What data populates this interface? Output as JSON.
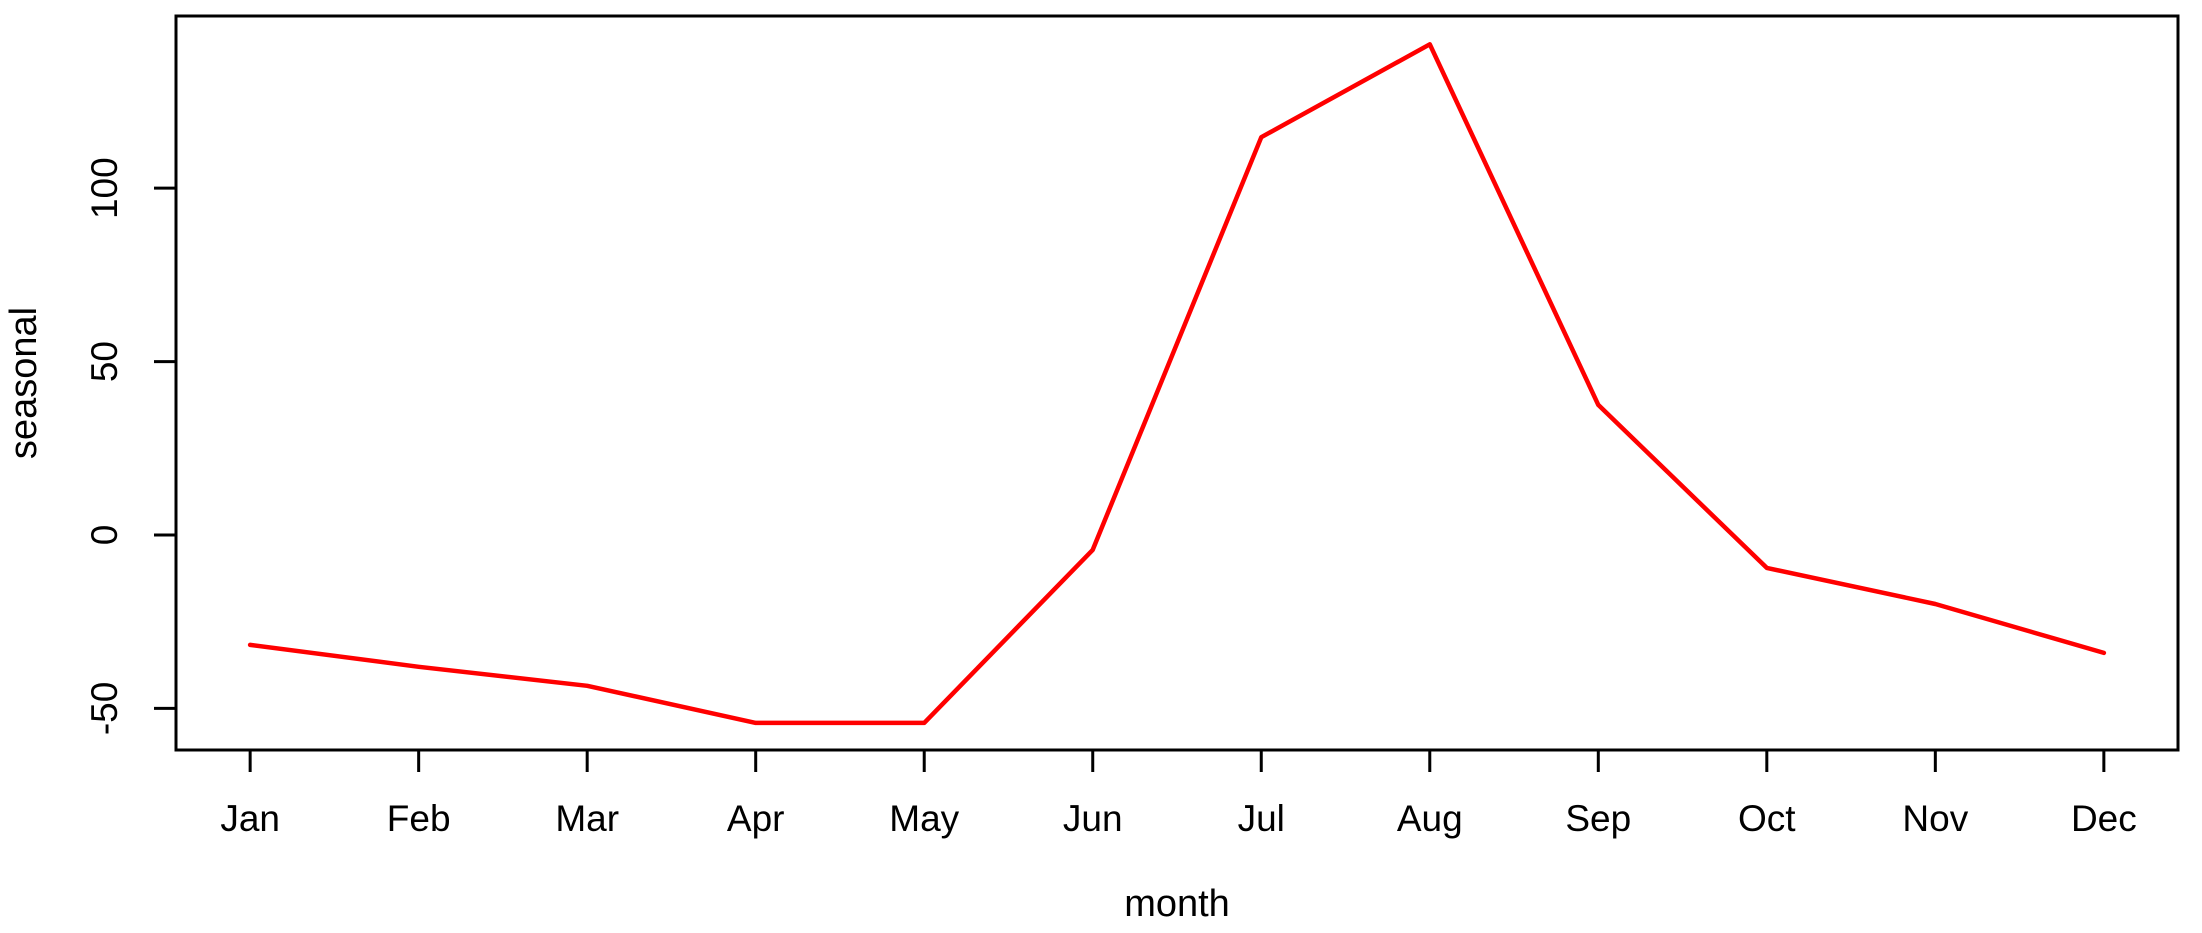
{
  "chart_data": {
    "type": "line",
    "title": "",
    "xlabel": "month",
    "ylabel": "seasonal",
    "categories": [
      "Jan",
      "Feb",
      "Mar",
      "Apr",
      "May",
      "Jun",
      "Jul",
      "Aug",
      "Sep",
      "Oct",
      "Nov",
      "Dec"
    ],
    "series": [
      {
        "name": "seasonal",
        "color": "#ff0000",
        "values": [
          -31.7,
          -38.0,
          -43.5,
          -54.2,
          -54.2,
          -4.3,
          114.7,
          141.5,
          37.5,
          -9.5,
          -19.9,
          -34.0
        ]
      }
    ],
    "yticks": [
      -50,
      0,
      50,
      100
    ],
    "ytick_labels": [
      "-50",
      "0",
      "50",
      "100"
    ],
    "ylim": [
      -62.0,
      149.65
    ],
    "xlim": [
      0.56,
      12.44
    ],
    "grid": false,
    "legend": "none",
    "line_style": "solid",
    "box": true
  },
  "colors": {
    "line": "#ff0000",
    "axis": "#000000",
    "text": "#000000",
    "background": "#ffffff"
  }
}
